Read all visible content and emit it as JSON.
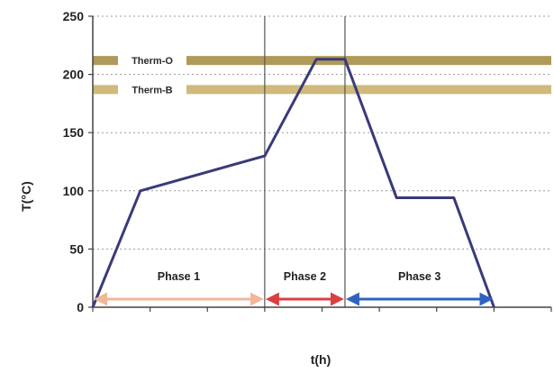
{
  "chart_data": {
    "type": "line",
    "title": "",
    "xlabel": "t(h)",
    "ylabel": "T(°C)",
    "ylim": [
      0,
      250
    ],
    "yticks": [
      0,
      50,
      100,
      150,
      200,
      250
    ],
    "xlim": [
      0,
      8
    ],
    "grid": "horizontal dotted",
    "series": [
      {
        "name": "",
        "color": "#3a3a7a",
        "x": [
          0,
          0.83,
          3.0,
          3.9,
          4.4,
          5.3,
          6.3,
          7.0
        ],
        "y": [
          0,
          100,
          130,
          213,
          213,
          94,
          94,
          0
        ]
      }
    ],
    "bands": [
      {
        "label": "Therm-O",
        "y": 212,
        "color": "#b09a5a"
      },
      {
        "label": "Therm-B",
        "y": 187,
        "color": "#cfba7c"
      }
    ],
    "phase_boundaries": [
      3.0,
      4.4,
      7.0
    ],
    "phases": [
      {
        "label": "Phase 1",
        "from": 0,
        "to": 3.0,
        "color": "#f0b898"
      },
      {
        "label": "Phase 2",
        "from": 3.0,
        "to": 4.4,
        "color": "#d94040"
      },
      {
        "label": "Phase 3",
        "from": 4.4,
        "to": 7.0,
        "color": "#2f63c0"
      }
    ]
  }
}
